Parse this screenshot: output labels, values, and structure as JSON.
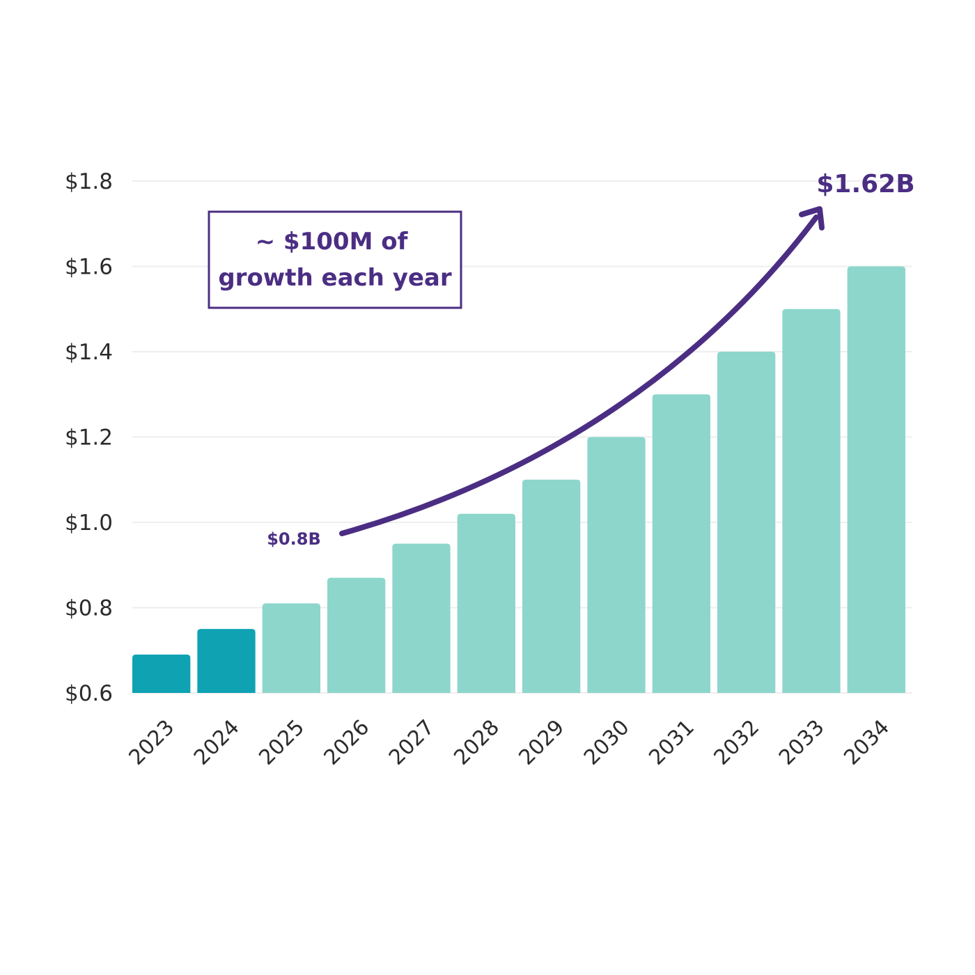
{
  "chart_data": {
    "type": "bar",
    "categories": [
      "2023",
      "2024",
      "2025",
      "2026",
      "2027",
      "2028",
      "2029",
      "2030",
      "2031",
      "2032",
      "2033",
      "2034"
    ],
    "values": [
      0.69,
      0.75,
      0.81,
      0.87,
      0.95,
      1.02,
      1.1,
      1.2,
      1.3,
      1.4,
      1.5,
      1.6
    ],
    "bar_colors": [
      "#0ea2b3",
      "#0ea2b3",
      "#8dd6cc",
      "#8dd6cc",
      "#8dd6cc",
      "#8dd6cc",
      "#8dd6cc",
      "#8dd6cc",
      "#8dd6cc",
      "#8dd6cc",
      "#8dd6cc",
      "#8dd6cc"
    ],
    "ylim": [
      0.6,
      1.8
    ],
    "yticks": [
      0.6,
      0.8,
      1.0,
      1.2,
      1.4,
      1.6,
      1.8
    ],
    "ytick_labels": [
      "$0.6",
      "$0.8",
      "$1.0",
      "$1.2",
      "$1.4",
      "$1.6",
      "$1.8"
    ],
    "grid": true,
    "gridline_color": "#eeeeee",
    "annotation_color": "#4b2e83",
    "annotations": {
      "box_lines": [
        "~ $100M of",
        "growth each year"
      ],
      "start_label": "$0.8B",
      "end_label": "$1.62B"
    }
  }
}
